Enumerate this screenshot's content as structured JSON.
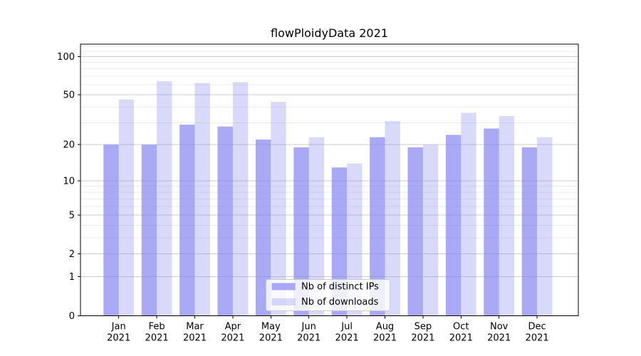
{
  "chart_data": {
    "type": "bar",
    "title": "flowPloidyData 2021",
    "categories": [
      "Jan",
      "Feb",
      "Mar",
      "Apr",
      "May",
      "Jun",
      "Jul",
      "Aug",
      "Sep",
      "Oct",
      "Nov",
      "Dec"
    ],
    "category_year": "2021",
    "series": [
      {
        "name": "Nb of distinct IPs",
        "values": [
          20,
          20,
          29,
          28,
          22,
          19,
          13,
          23,
          19,
          24,
          27,
          19
        ],
        "color": "rgba(128,128,240,0.68)"
      },
      {
        "name": "Nb of downloads",
        "values": [
          46,
          64,
          62,
          63,
          44,
          23,
          14,
          31,
          20,
          36,
          34,
          23
        ],
        "color": "rgba(128,128,240,0.30)"
      }
    ],
    "yscale": "log1p",
    "yticks": [
      0,
      1,
      2,
      5,
      10,
      20,
      50,
      100
    ],
    "minor_yticks": [
      3,
      4,
      6,
      7,
      8,
      9,
      30,
      40,
      60,
      70,
      80,
      90,
      110,
      120
    ],
    "ylim": [
      0,
      125
    ],
    "grid": true,
    "legend_position": "lower-center",
    "colors": {
      "axis": "#000000",
      "major_grid": "#cccccc",
      "minor_grid": "#ebebeb",
      "tick_label": "#000000",
      "legend_border": "#cbcbcb",
      "legend_bg": "rgba(255,255,255,0.8)"
    }
  }
}
